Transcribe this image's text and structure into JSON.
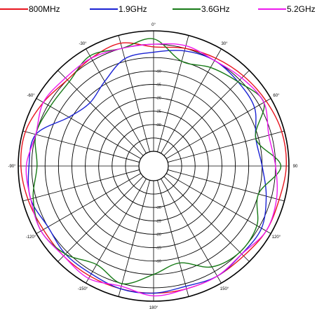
{
  "chart_data": {
    "type": "polar-line",
    "title": "",
    "legend_position": "top",
    "grid": true,
    "angle_ticks": [
      {
        "deg": 0,
        "label": "0°"
      },
      {
        "deg": 30,
        "label": "30°"
      },
      {
        "deg": 60,
        "label": "60°"
      },
      {
        "deg": 90,
        "label": "90"
      },
      {
        "deg": 120,
        "label": "120°"
      },
      {
        "deg": 150,
        "label": "150°"
      },
      {
        "deg": 180,
        "label": "180°"
      },
      {
        "deg": -150,
        "label": "-150°"
      },
      {
        "deg": -120,
        "label": "-120°"
      },
      {
        "deg": -90,
        "label": "-90°"
      },
      {
        "deg": -60,
        "label": "-60°"
      },
      {
        "deg": -30,
        "label": "-30°"
      }
    ],
    "radial_tick_labels": [
      "-10",
      "-15",
      "-20",
      "-25",
      "-30"
    ],
    "rlim": [
      -45,
      0
    ],
    "angle_step_deg": 15,
    "series": [
      {
        "name": "800MHz",
        "color": "#e8141e",
        "r_step_deg": 15,
        "r": [
          -6,
          -5,
          -4,
          -3,
          -2,
          -1,
          -1,
          -2,
          -2,
          -3,
          -3,
          -3,
          -3,
          -3,
          -3,
          -3,
          -3,
          -2,
          -1,
          -1,
          -3,
          -5,
          -4,
          -3
        ]
      },
      {
        "name": "1.9GHz",
        "color": "#1a22d4",
        "r_step_deg": 15,
        "r": [
          -8,
          -6,
          -5,
          -6,
          -7,
          -11,
          -10,
          -7,
          -4,
          -4,
          -3,
          -4,
          -3,
          -3,
          -4,
          -4,
          -5,
          -3,
          -4,
          -5,
          -14,
          -17,
          -14,
          -9
        ]
      },
      {
        "name": "3.6GHz",
        "color": "#167a16",
        "r_step_deg": 15,
        "r": [
          -3,
          -10,
          -8,
          -6,
          -3,
          -11,
          -3,
          -10,
          -6,
          -5,
          -7,
          -13,
          -10,
          -5,
          -8,
          -4,
          -2,
          -4,
          -7,
          -5,
          -6,
          -6,
          -3,
          -5
        ]
      },
      {
        "name": "5.2GHz",
        "color": "#ee18ee",
        "r_step_deg": 15,
        "r": [
          -5,
          -4,
          -5,
          -4,
          -3,
          -6,
          -5,
          -3,
          -2,
          -4,
          -3,
          -3,
          -2,
          -4,
          -2,
          -3,
          -2,
          -3,
          -3,
          -5,
          -3,
          -4,
          -4,
          -5
        ]
      }
    ]
  }
}
